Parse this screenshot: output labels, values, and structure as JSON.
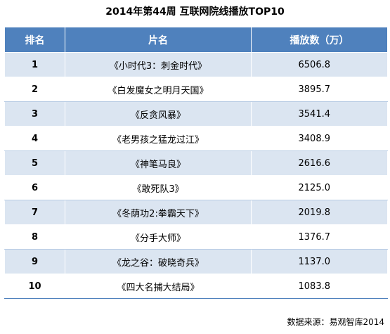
{
  "chart_data": {
    "type": "table",
    "title": "2014年第44周 互联网院线播放TOP10",
    "columns": [
      "排名",
      "片名",
      "播放数（万）"
    ],
    "rows": [
      {
        "rank": "1",
        "name": "《小时代3：刺金时代》",
        "views": "6506.8"
      },
      {
        "rank": "2",
        "name": "《白发魔女之明月天国》",
        "views": "3895.7"
      },
      {
        "rank": "3",
        "name": "《反贪风暴》",
        "views": "3541.4"
      },
      {
        "rank": "4",
        "name": "《老男孩之猛龙过江》",
        "views": "3408.9"
      },
      {
        "rank": "5",
        "name": "《神笔马良》",
        "views": "2616.6"
      },
      {
        "rank": "6",
        "name": "《敢死队3》",
        "views": "2125.0"
      },
      {
        "rank": "7",
        "name": "《冬荫功2:拳霸天下》",
        "views": "2019.8"
      },
      {
        "rank": "8",
        "name": "《分手大师》",
        "views": "1376.7"
      },
      {
        "rank": "9",
        "name": "《龙之谷：破晓奇兵》",
        "views": "1137.0"
      },
      {
        "rank": "10",
        "name": "《四大名捕大结局》",
        "views": "1083.8"
      }
    ],
    "source": "数据来源：易观智库2014",
    "watermark": "易观智库"
  },
  "colors": {
    "header_bg": "#4f81bd",
    "header_text": "#ffffff",
    "band_bg": "#dbe5f1"
  }
}
